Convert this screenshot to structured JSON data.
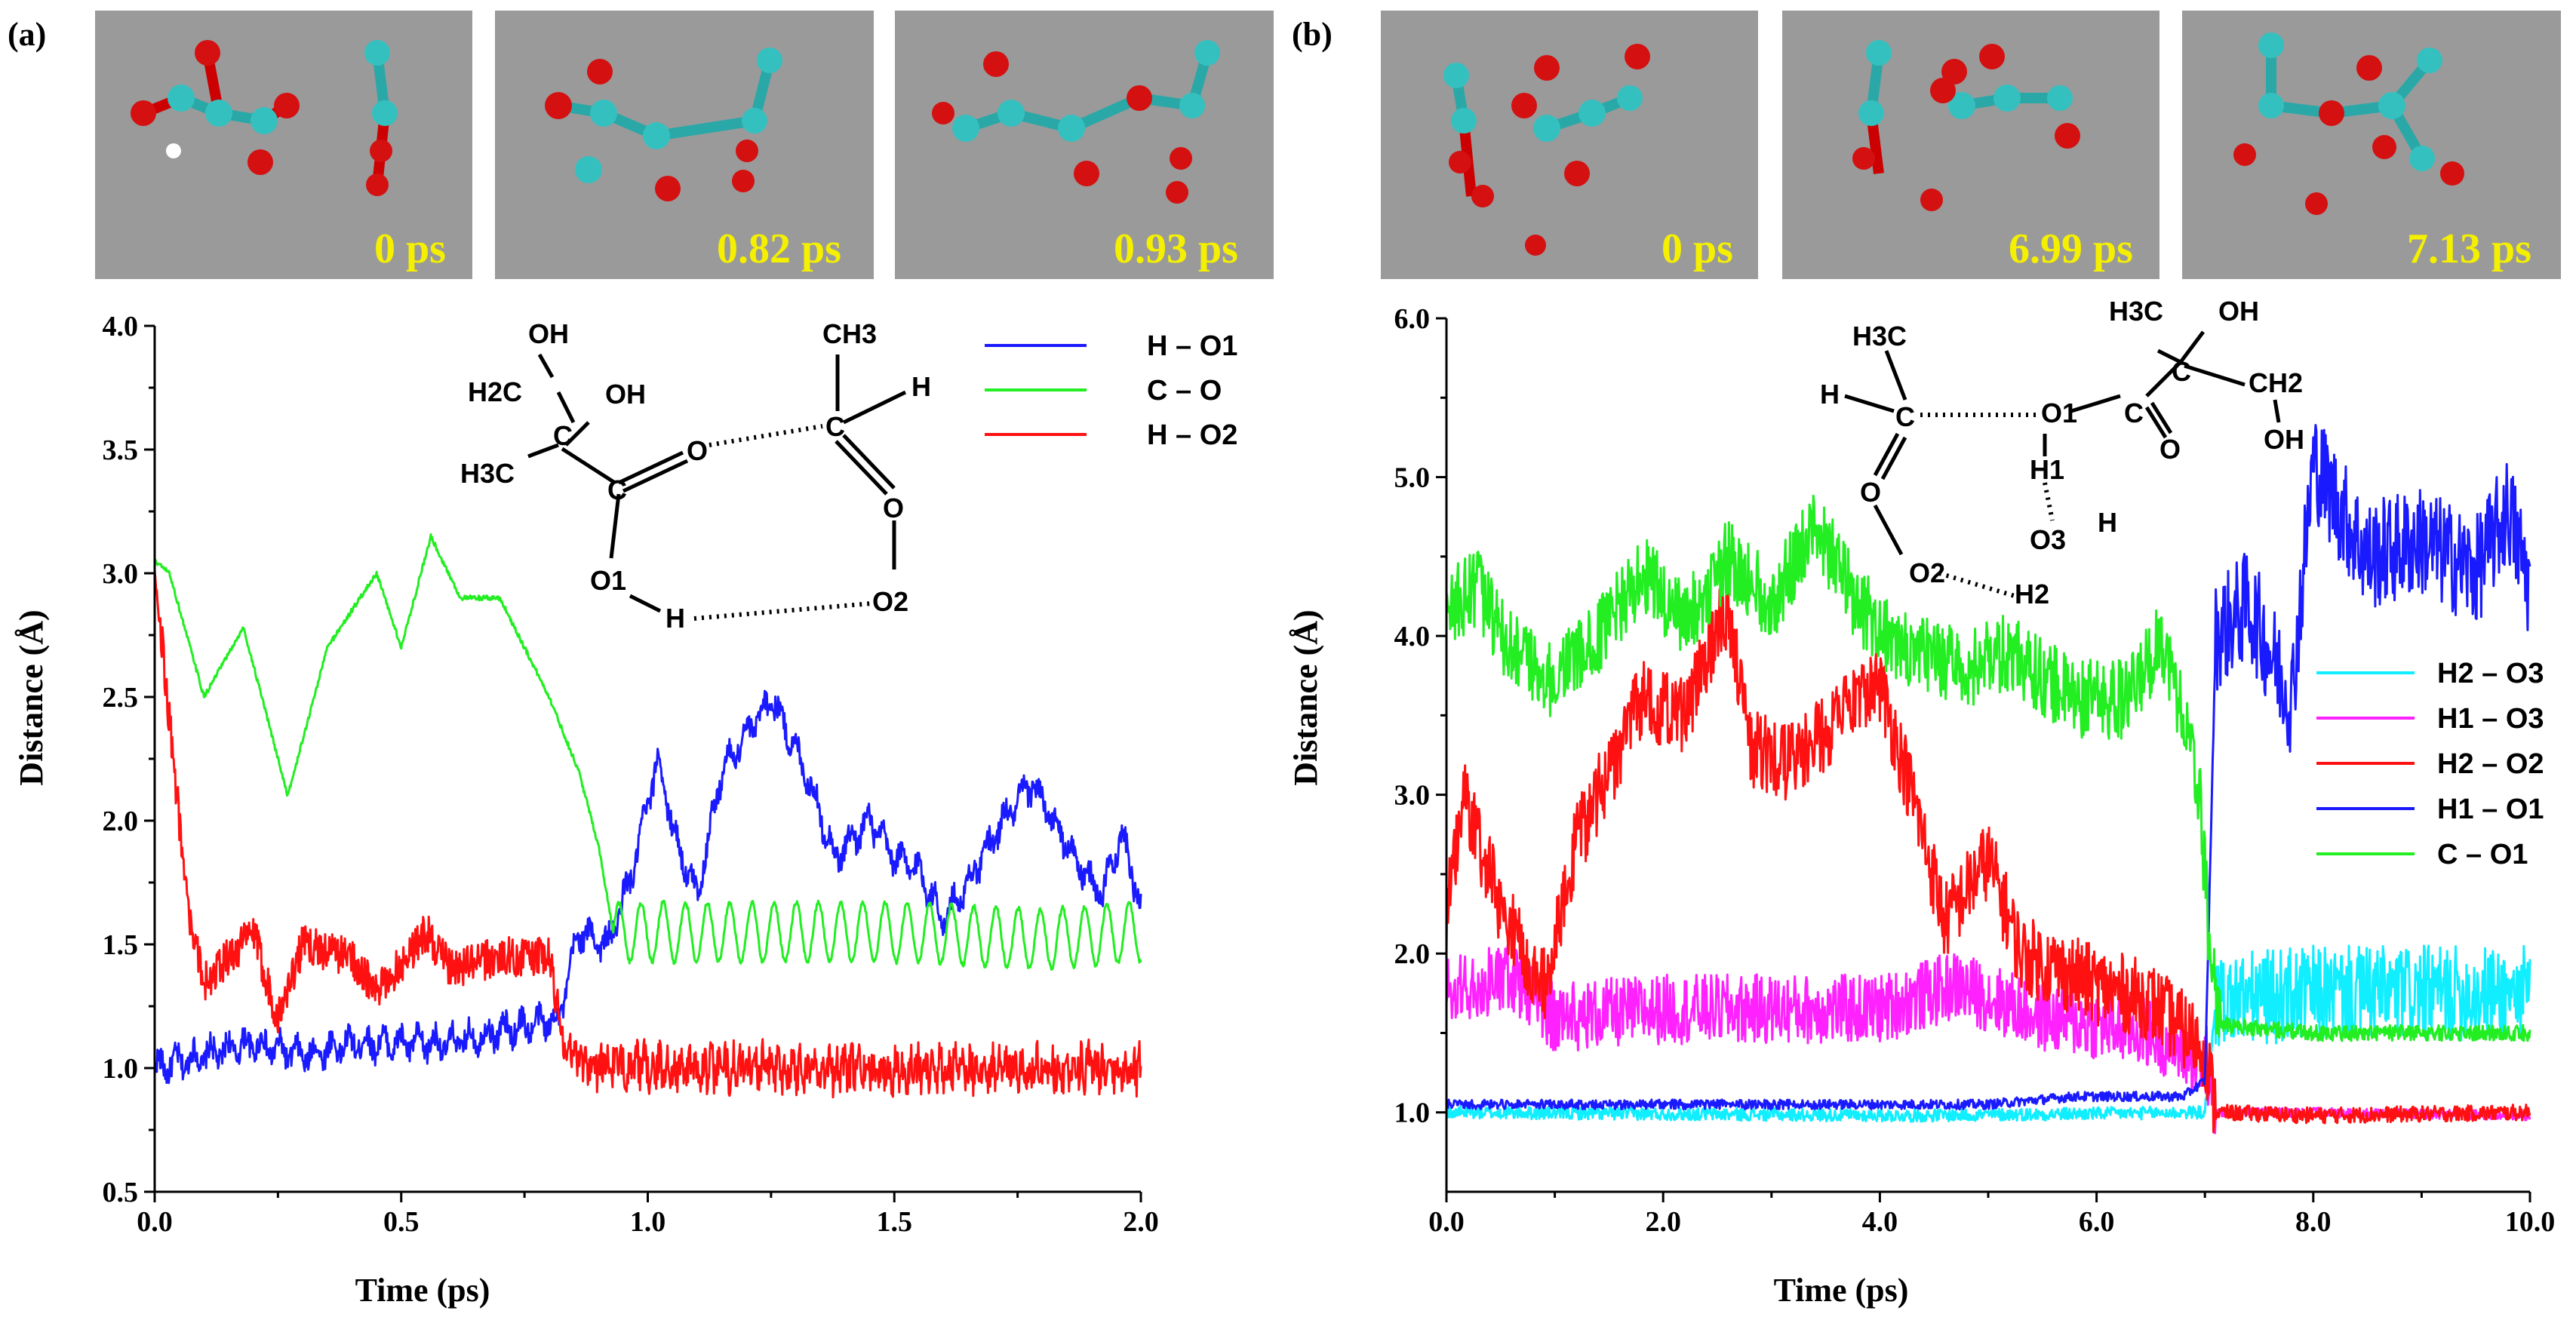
{
  "panels": {
    "a": {
      "label": "(a)",
      "snapshots": [
        "0 ps",
        "0.82 ps",
        "0.93 ps"
      ],
      "molecule_labels": [
        "OH",
        "H2C",
        "OH",
        "C",
        "H3C",
        "C",
        "O",
        "O1",
        "H",
        "C",
        "CH3",
        "H",
        "O",
        "O2"
      ]
    },
    "b": {
      "label": "(b)",
      "snapshots": [
        "0 ps",
        "6.99 ps",
        "7.13 ps"
      ],
      "molecule_labels": [
        "H3C",
        "H",
        "C",
        "O",
        "O2",
        "O1",
        "H1",
        "O3",
        "H",
        "H2",
        "C",
        "O",
        "H3C",
        "OH",
        "C",
        "CH2",
        "OH"
      ]
    }
  },
  "colors": {
    "blue": "#1a1aff",
    "green": "#22ee22",
    "red": "#ff1111",
    "magenta": "#ff22ff",
    "cyan": "#11eeff",
    "snapshot_bg": "#9a9a9a",
    "snapshot_label": "#f5f000"
  },
  "chart_data": [
    {
      "type": "line",
      "panel": "a",
      "title": "",
      "xlabel": "Time (ps)",
      "ylabel": "Distance (Å)",
      "xlim": [
        0.0,
        2.0
      ],
      "ylim": [
        0.5,
        4.0
      ],
      "xticks": [
        "0.0",
        "0.5",
        "1.0",
        "1.5",
        "2.0"
      ],
      "yticks": [
        "0.5",
        "1.0",
        "1.5",
        "2.0",
        "2.5",
        "3.0",
        "3.5",
        "4.0"
      ],
      "legend_position": "top-right",
      "series": [
        {
          "name": "H – O1",
          "color": "#1a1aff",
          "noise": 0.05,
          "osc": 0.04,
          "period": 0.035,
          "points": [
            [
              0,
              1.0
            ],
            [
              0.1,
              1.05
            ],
            [
              0.2,
              1.1
            ],
            [
              0.3,
              1.05
            ],
            [
              0.4,
              1.1
            ],
            [
              0.5,
              1.1
            ],
            [
              0.6,
              1.1
            ],
            [
              0.7,
              1.15
            ],
            [
              0.82,
              1.2
            ],
            [
              0.86,
              1.55
            ],
            [
              0.92,
              1.5
            ],
            [
              0.97,
              1.8
            ],
            [
              1.02,
              2.25
            ],
            [
              1.06,
              1.9
            ],
            [
              1.1,
              1.7
            ],
            [
              1.15,
              2.2
            ],
            [
              1.25,
              2.5
            ],
            [
              1.32,
              2.2
            ],
            [
              1.38,
              1.85
            ],
            [
              1.45,
              2.0
            ],
            [
              1.5,
              1.85
            ],
            [
              1.55,
              1.8
            ],
            [
              1.6,
              1.6
            ],
            [
              1.65,
              1.75
            ],
            [
              1.72,
              2.0
            ],
            [
              1.78,
              2.15
            ],
            [
              1.82,
              2.0
            ],
            [
              1.88,
              1.8
            ],
            [
              1.92,
              1.7
            ],
            [
              1.96,
              1.95
            ],
            [
              2.0,
              1.65
            ]
          ]
        },
        {
          "name": "C – O",
          "color": "#22ee22",
          "noise": 0.01,
          "osc": 0.0,
          "period": 0.05,
          "points": [
            [
              0,
              3.05
            ],
            [
              0.03,
              3.0
            ],
            [
              0.1,
              2.5
            ],
            [
              0.18,
              2.78
            ],
            [
              0.27,
              2.1
            ],
            [
              0.35,
              2.7
            ],
            [
              0.45,
              3.0
            ],
            [
              0.5,
              2.7
            ],
            [
              0.56,
              3.15
            ],
            [
              0.62,
              2.9
            ],
            [
              0.7,
              2.9
            ],
            [
              0.8,
              2.5
            ],
            [
              0.86,
              2.2
            ],
            [
              0.9,
              1.9
            ],
            [
              0.93,
              1.55
            ],
            [
              1.0,
              1.55
            ],
            [
              1.2,
              1.55
            ],
            [
              1.5,
              1.55
            ],
            [
              1.8,
              1.52
            ],
            [
              2.0,
              1.55
            ]
          ],
          "post_osc": {
            "start": 0.93,
            "amp": 0.12,
            "period": 0.045
          }
        },
        {
          "name": "H – O2",
          "color": "#ff1111",
          "noise": 0.08,
          "osc": 0.0,
          "period": 0.05,
          "points": [
            [
              0,
              3.05
            ],
            [
              0.03,
              2.4
            ],
            [
              0.07,
              1.6
            ],
            [
              0.1,
              1.35
            ],
            [
              0.15,
              1.45
            ],
            [
              0.2,
              1.55
            ],
            [
              0.25,
              1.2
            ],
            [
              0.3,
              1.5
            ],
            [
              0.4,
              1.45
            ],
            [
              0.45,
              1.3
            ],
            [
              0.55,
              1.55
            ],
            [
              0.6,
              1.4
            ],
            [
              0.7,
              1.45
            ],
            [
              0.8,
              1.45
            ],
            [
              0.83,
              1.1
            ],
            [
              0.87,
              1.02
            ],
            [
              1.0,
              1.0
            ],
            [
              2.0,
              1.0
            ]
          ],
          "post_osc": {
            "start": 0.87,
            "amp": 0.04,
            "period": 0.015
          }
        }
      ]
    },
    {
      "type": "line",
      "panel": "b",
      "title": "",
      "xlabel": "Time (ps)",
      "ylabel": "Distance (Å)",
      "xlim": [
        0.0,
        10.0
      ],
      "ylim": [
        0.5,
        6.0
      ],
      "xticks": [
        "0.0",
        "2.0",
        "4.0",
        "6.0",
        "8.0",
        "10.0"
      ],
      "yticks": [
        "1.0",
        "2.0",
        "3.0",
        "4.0",
        "5.0",
        "6.0"
      ],
      "legend_position": "right",
      "series": [
        {
          "name": "H2 – O3",
          "color": "#11eeff",
          "noise": 0.04,
          "osc": 0.0,
          "period": 0.1,
          "points": [
            [
              0,
              1.0
            ],
            [
              4.3,
              0.98
            ],
            [
              7.0,
              1.0
            ],
            [
              7.1,
              1.7
            ],
            [
              8.0,
              1.75
            ],
            [
              9.0,
              1.75
            ],
            [
              10.0,
              1.75
            ]
          ],
          "noise_after": {
            "start": 7.1,
            "amp": 0.3
          }
        },
        {
          "name": "H1 – O3",
          "color": "#ff22ff",
          "noise": 0.22,
          "osc": 0.0,
          "period": 0.1,
          "points": [
            [
              0,
              1.75
            ],
            [
              0.6,
              1.85
            ],
            [
              1.0,
              1.6
            ],
            [
              2.0,
              1.65
            ],
            [
              3.0,
              1.65
            ],
            [
              4.0,
              1.65
            ],
            [
              4.7,
              1.8
            ],
            [
              5.5,
              1.6
            ],
            [
              6.5,
              1.5
            ],
            [
              7.0,
              1.3
            ],
            [
              7.1,
              1.0
            ],
            [
              8.0,
              1.0
            ],
            [
              10.0,
              0.98
            ]
          ],
          "noise_after": {
            "start": 7.1,
            "amp": 0.03
          }
        },
        {
          "name": "H2 – O2",
          "color": "#ff1111",
          "noise": 0.25,
          "osc": 0.0,
          "period": 0.1,
          "points": [
            [
              0,
              2.2
            ],
            [
              0.15,
              3.0
            ],
            [
              0.5,
              2.3
            ],
            [
              0.9,
              1.8
            ],
            [
              1.2,
              2.7
            ],
            [
              1.8,
              3.6
            ],
            [
              2.2,
              3.5
            ],
            [
              2.6,
              4.2
            ],
            [
              2.8,
              3.3
            ],
            [
              3.2,
              3.2
            ],
            [
              3.5,
              3.4
            ],
            [
              4.0,
              3.7
            ],
            [
              4.3,
              3.0
            ],
            [
              4.6,
              2.2
            ],
            [
              5.0,
              2.6
            ],
            [
              5.3,
              2.0
            ],
            [
              6.0,
              1.8
            ],
            [
              6.5,
              1.7
            ],
            [
              7.0,
              1.4
            ],
            [
              7.1,
              1.0
            ],
            [
              8.0,
              0.98
            ],
            [
              10.0,
              1.0
            ]
          ],
          "noise_after": {
            "start": 7.1,
            "amp": 0.05
          }
        },
        {
          "name": "H1 – O1",
          "color": "#1a1aff",
          "noise": 0.03,
          "osc": 0.0,
          "period": 0.1,
          "points": [
            [
              0,
              1.05
            ],
            [
              5.0,
              1.05
            ],
            [
              5.8,
              1.1
            ],
            [
              6.8,
              1.1
            ],
            [
              7.0,
              1.2
            ],
            [
              7.1,
              4.0
            ],
            [
              7.4,
              4.2
            ],
            [
              7.8,
              3.6
            ],
            [
              8.0,
              5.1
            ],
            [
              8.5,
              4.5
            ],
            [
              9.0,
              4.6
            ],
            [
              9.5,
              4.4
            ],
            [
              9.8,
              4.8
            ],
            [
              10.0,
              4.3
            ]
          ],
          "noise_after": {
            "start": 7.1,
            "amp": 0.35
          }
        },
        {
          "name": "C – O1",
          "color": "#22ee22",
          "noise": 0.25,
          "osc": 0.0,
          "period": 0.1,
          "points": [
            [
              0,
              4.2
            ],
            [
              0.3,
              4.3
            ],
            [
              0.6,
              3.9
            ],
            [
              1.0,
              3.7
            ],
            [
              1.4,
              4.0
            ],
            [
              1.8,
              4.4
            ],
            [
              2.2,
              4.1
            ],
            [
              2.6,
              4.5
            ],
            [
              3.0,
              4.2
            ],
            [
              3.4,
              4.7
            ],
            [
              3.8,
              4.2
            ],
            [
              4.2,
              3.9
            ],
            [
              4.8,
              3.8
            ],
            [
              5.2,
              3.9
            ],
            [
              5.8,
              3.6
            ],
            [
              6.3,
              3.6
            ],
            [
              6.6,
              4.0
            ],
            [
              6.8,
              3.5
            ],
            [
              6.95,
              3.0
            ],
            [
              7.05,
              2.0
            ],
            [
              7.15,
              1.55
            ],
            [
              8.0,
              1.5
            ],
            [
              10.0,
              1.5
            ]
          ],
          "noise_after": {
            "start": 7.15,
            "amp": 0.05
          }
        }
      ]
    }
  ]
}
